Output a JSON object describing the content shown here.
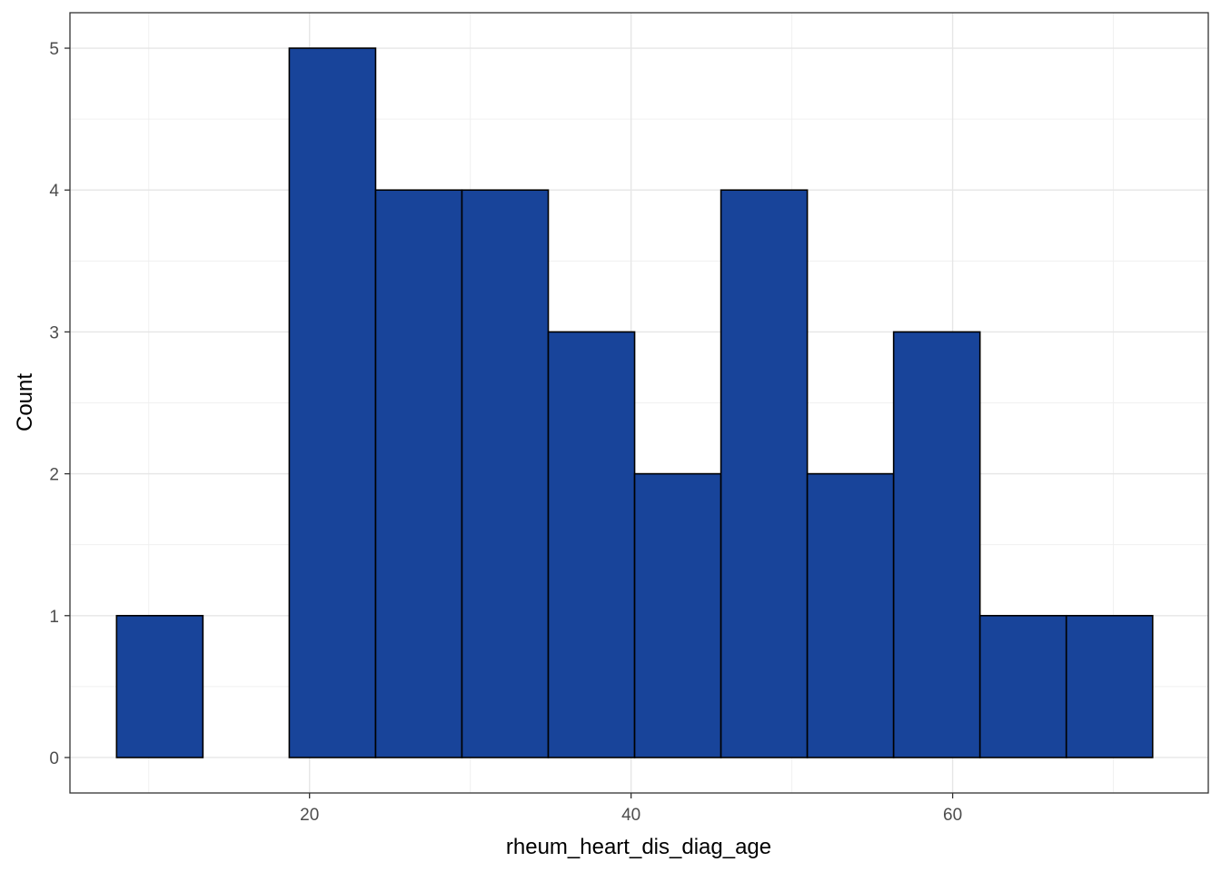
{
  "chart_data": {
    "type": "bar",
    "subtype": "histogram",
    "xlabel": "rheum_heart_dis_diag_age",
    "ylabel": "Count",
    "xlim": [
      5.1,
      75.9
    ],
    "ylim": [
      -0.25,
      5.25
    ],
    "x_ticks": [
      20,
      40,
      60
    ],
    "x_tick_labels": [
      "20",
      "40",
      "60"
    ],
    "y_ticks": [
      0,
      1,
      2,
      3,
      4,
      5
    ],
    "y_tick_labels": [
      "0",
      "1",
      "2",
      "3",
      "4",
      "5"
    ],
    "bin_width": 5.37,
    "bins": [
      {
        "start": 8.0,
        "end": 13.37,
        "count": 1
      },
      {
        "start": 13.37,
        "end": 18.74,
        "count": 0
      },
      {
        "start": 18.74,
        "end": 24.11,
        "count": 5
      },
      {
        "start": 24.11,
        "end": 29.48,
        "count": 4
      },
      {
        "start": 29.48,
        "end": 34.85,
        "count": 4
      },
      {
        "start": 34.85,
        "end": 40.22,
        "count": 3
      },
      {
        "start": 40.22,
        "end": 45.59,
        "count": 2
      },
      {
        "start": 45.59,
        "end": 50.96,
        "count": 4
      },
      {
        "start": 50.96,
        "end": 56.33,
        "count": 2
      },
      {
        "start": 56.33,
        "end": 61.7,
        "count": 3
      },
      {
        "start": 61.7,
        "end": 67.07,
        "count": 1
      },
      {
        "start": 67.07,
        "end": 72.44,
        "count": 1
      }
    ],
    "bar_fill": "#18449A",
    "bar_outline": "#000000",
    "grid": true,
    "theme": "bw"
  }
}
